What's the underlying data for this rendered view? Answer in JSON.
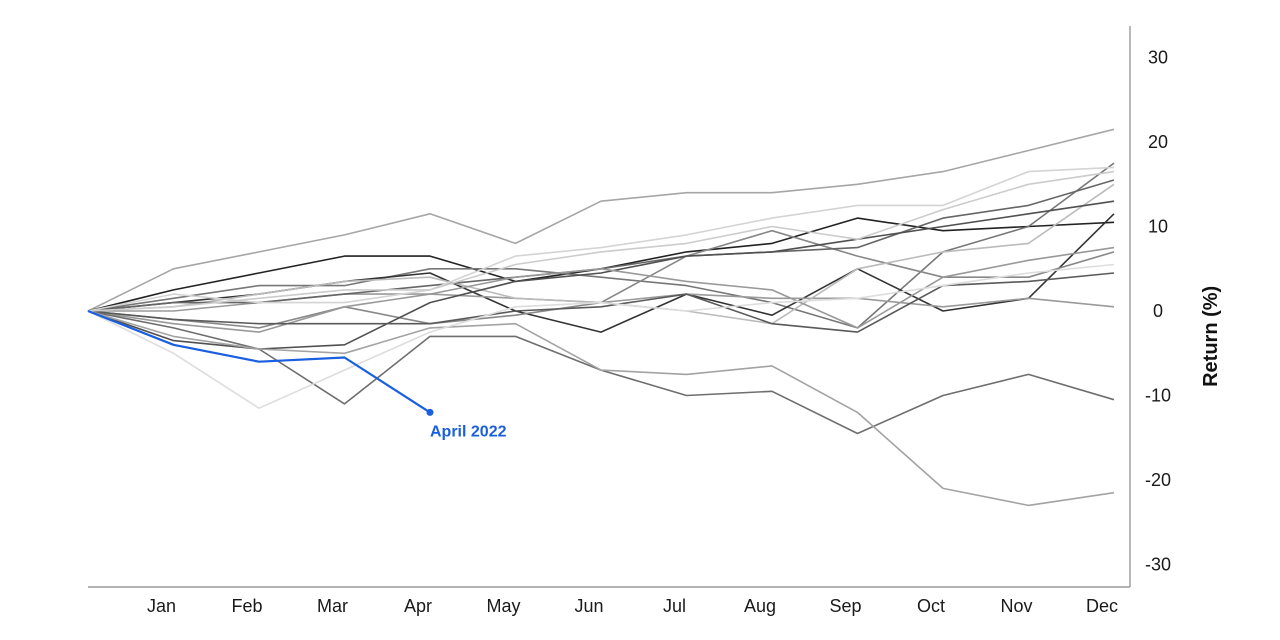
{
  "chart_data": {
    "type": "line",
    "title": "",
    "xlabel": "",
    "ylabel": "Return (%)",
    "categories": [
      "Jan",
      "Feb",
      "Mar",
      "Apr",
      "May",
      "Jun",
      "Jul",
      "Aug",
      "Sep",
      "Oct",
      "Nov",
      "Dec"
    ],
    "yticks": [
      30,
      20,
      10,
      0,
      -10,
      -20,
      -30
    ],
    "ylim": [
      -33,
      33
    ],
    "grid": false,
    "start_value": 0,
    "series": [
      {
        "values": [
          5,
          7,
          9,
          11.5,
          8,
          13,
          14,
          14,
          15,
          16.5,
          19,
          21.5
        ],
        "color": "#a6a6a6"
      },
      {
        "values": [
          2.5,
          4.5,
          6.5,
          6.5,
          3.5,
          5,
          7,
          8,
          11,
          9.5,
          10,
          10.5
        ],
        "color": "#222222"
      },
      {
        "values": [
          1.5,
          3,
          3,
          5,
          5,
          4,
          3,
          1,
          -2,
          7,
          10,
          17.5
        ],
        "color": "#777777"
      },
      {
        "values": [
          1,
          2,
          3.5,
          4.5,
          0,
          -2.5,
          2,
          -0.5,
          5,
          0,
          1.5,
          11.5
        ],
        "color": "#333333"
      },
      {
        "values": [
          -1,
          -2,
          0.5,
          -1.5,
          -0.5,
          1,
          6.5,
          9.5,
          6.5,
          4,
          4,
          7
        ],
        "color": "#888888"
      },
      {
        "values": [
          0,
          1,
          2,
          2,
          1.5,
          1,
          2,
          1.5,
          1.5,
          0.5,
          1.5,
          0.5
        ],
        "color": "#9a9a9a"
      },
      {
        "values": [
          0.5,
          2,
          3.5,
          4,
          1.5,
          1,
          0,
          -1.5,
          5,
          7,
          8,
          15
        ],
        "color": "#bbbbbb"
      },
      {
        "values": [
          1,
          1,
          2,
          3,
          4,
          5,
          6.5,
          7,
          7.5,
          11,
          12.5,
          15.5
        ],
        "color": "#666666"
      },
      {
        "values": [
          -3.5,
          -4.5,
          -4,
          1,
          3.5,
          4.5,
          6.5,
          7,
          8.5,
          10,
          11.5,
          13
        ],
        "color": "#505050"
      },
      {
        "values": [
          -1.5,
          -2.5,
          0.5,
          2,
          4,
          5,
          3.5,
          2.5,
          -2,
          4,
          6,
          7.5
        ],
        "color": "#999999"
      },
      {
        "values": [
          -1,
          -1.5,
          -1.5,
          -1.5,
          0,
          0.5,
          2,
          -1.5,
          -2.5,
          3,
          3.5,
          4.5
        ],
        "color": "#5a5a5a"
      },
      {
        "values": [
          -2,
          -4.5,
          -11,
          -3,
          -3,
          -7,
          -10,
          -9.5,
          -14.5,
          -10,
          -7.5,
          -10.5
        ],
        "color": "#6e6e6e"
      },
      {
        "values": [
          -3,
          -4.5,
          -5,
          -2,
          -1.5,
          -7,
          -7.5,
          -6.5,
          -12,
          -21,
          -23,
          -21.5
        ],
        "color": "#a3a3a3"
      },
      {
        "values": [
          -5,
          -11.5,
          -7,
          -2.5,
          0.5,
          1,
          0,
          1,
          1.5,
          3,
          4.5,
          5.5
        ],
        "color": "#dddddd"
      },
      {
        "values": [
          2,
          1,
          1,
          2.5,
          6.5,
          7.5,
          9,
          11,
          12.5,
          12.5,
          16.5,
          17
        ],
        "color": "#d4d4d4"
      },
      {
        "values": [
          0.5,
          1.5,
          2.5,
          2.5,
          5.5,
          7,
          8,
          10,
          8.5,
          12,
          15,
          16.5
        ],
        "color": "#cccccc"
      }
    ],
    "highlight": {
      "name": "April 2022",
      "values": [
        -4,
        -6,
        -5.5,
        -12
      ],
      "color": "#1a5fe0"
    }
  }
}
